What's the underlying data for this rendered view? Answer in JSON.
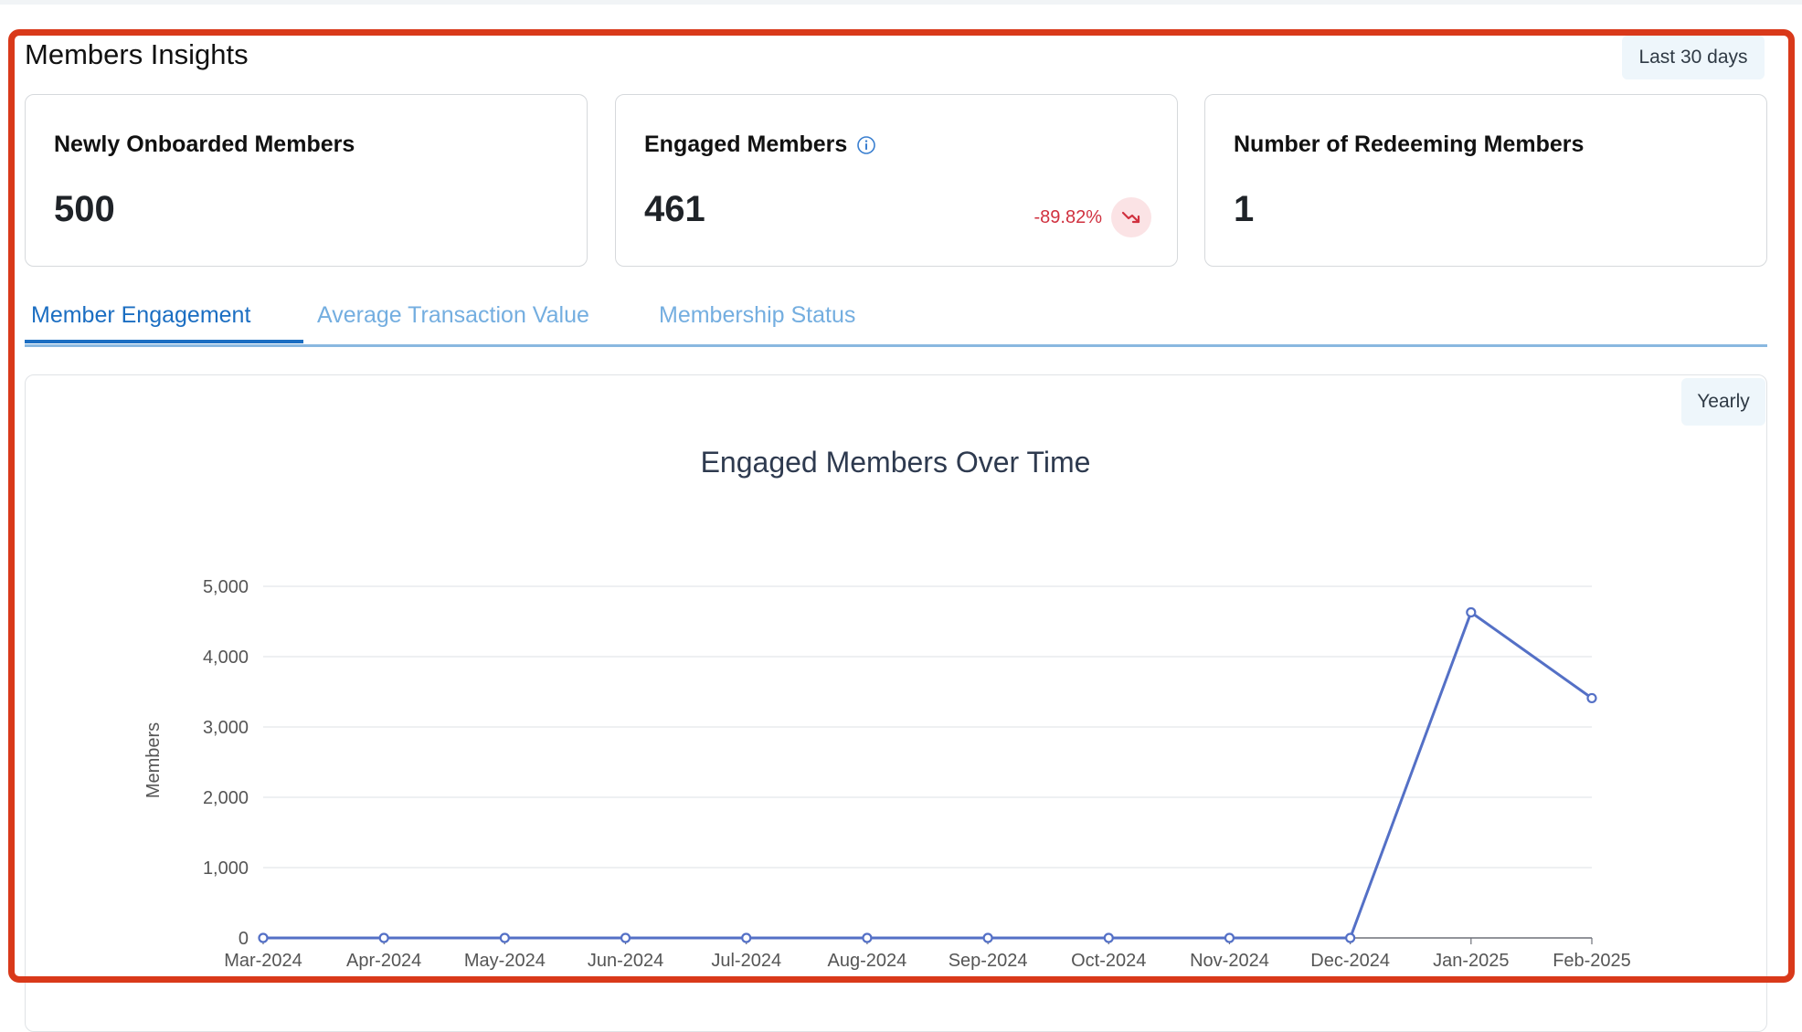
{
  "section": {
    "title": "Members Insights",
    "range_label": "Last 30 days"
  },
  "kpis": [
    {
      "title": "Newly Onboarded Members",
      "value": "500"
    },
    {
      "title": "Engaged Members",
      "value": "461",
      "change": "-89.82%",
      "icon": "info-icon",
      "trend_icon": "trend-down-icon",
      "trend_color": "#d0313f"
    },
    {
      "title": "Number of Redeeming Members",
      "value": "1"
    }
  ],
  "tabs": [
    {
      "label": "Member Engagement",
      "active": true
    },
    {
      "label": "Average Transaction Value",
      "active": false
    },
    {
      "label": "Membership Status",
      "active": false
    }
  ],
  "chart_panel": {
    "period_label": "Yearly"
  },
  "chart_data": {
    "type": "line",
    "title": "Engaged Members Over Time",
    "ylabel": "Members",
    "xlabel": "",
    "categories": [
      "Mar-2024",
      "Apr-2024",
      "May-2024",
      "Jun-2024",
      "Jul-2024",
      "Aug-2024",
      "Sep-2024",
      "Oct-2024",
      "Nov-2024",
      "Dec-2024",
      "Jan-2025",
      "Feb-2025"
    ],
    "values": [
      0,
      0,
      0,
      0,
      0,
      0,
      0,
      0,
      0,
      0,
      4630,
      3410
    ],
    "ylim": [
      0,
      5000
    ],
    "yticks": [
      0,
      1000,
      2000,
      3000,
      4000,
      5000
    ],
    "ytick_labels": [
      "0",
      "1,000",
      "2,000",
      "3,000",
      "4,000",
      "5,000"
    ],
    "grid": true,
    "line_color": "#5470c6"
  }
}
